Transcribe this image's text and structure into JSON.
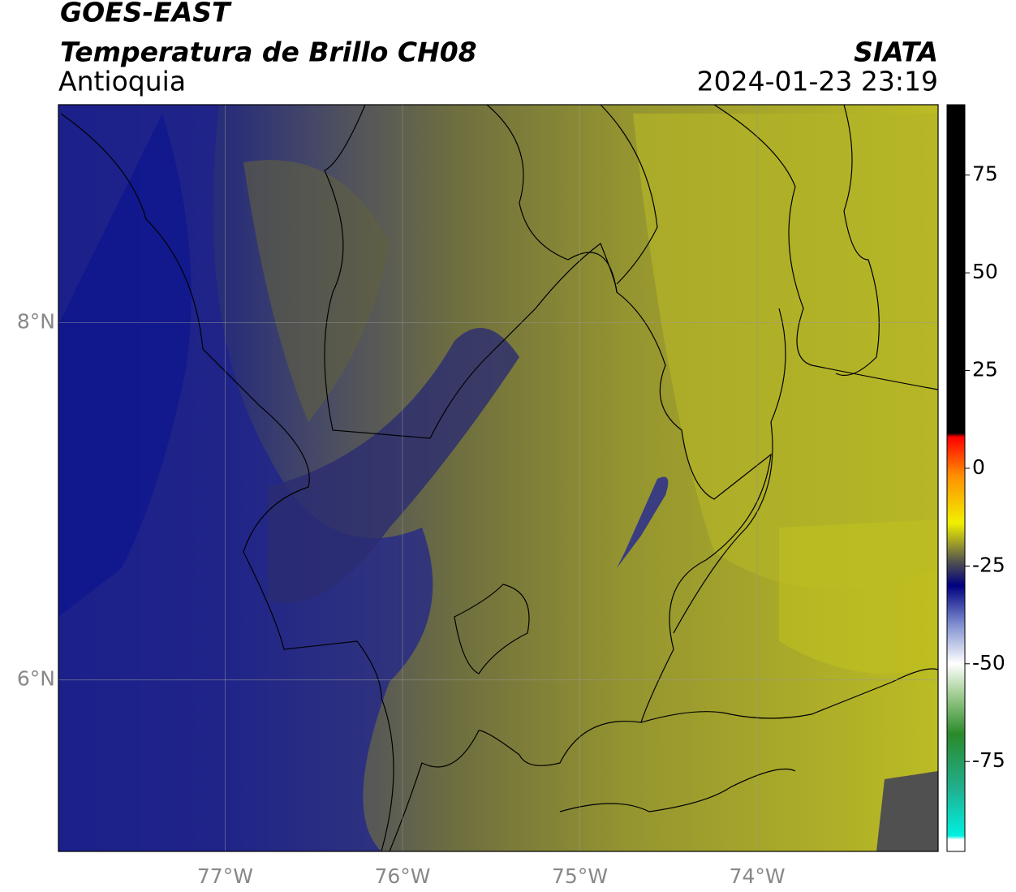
{
  "header": {
    "title": "GOES-EAST",
    "subtitle": "Temperatura de Brillo CH08",
    "region": "Antioquia",
    "source": "SIATA",
    "datetime": "2024-01-23 23:19"
  },
  "map": {
    "xlim": [
      -77.94,
      -72.98
    ],
    "ylim": [
      5.04,
      9.22
    ],
    "xticks": [
      {
        "value": -77,
        "label": "77°W"
      },
      {
        "value": -76,
        "label": "76°W"
      },
      {
        "value": -75,
        "label": "75°W"
      },
      {
        "value": -74,
        "label": "74°W"
      }
    ],
    "yticks": [
      {
        "value": 8,
        "label": "8°N"
      },
      {
        "value": 6,
        "label": "6°N"
      }
    ],
    "grid": true
  },
  "colorbar": {
    "vlim": [
      -98,
      93
    ],
    "ticks": [
      75,
      50,
      25,
      0,
      -25,
      -50,
      -75
    ],
    "stops": [
      {
        "value": -98,
        "color": "#ffffff"
      },
      {
        "value": -95,
        "color": "#ffffff"
      },
      {
        "value": -94,
        "color": "#00f0e0"
      },
      {
        "value": -82,
        "color": "#20b090"
      },
      {
        "value": -68,
        "color": "#2a8a2a"
      },
      {
        "value": -58,
        "color": "#a0cc90"
      },
      {
        "value": -50,
        "color": "#ffffff"
      },
      {
        "value": -40,
        "color": "#8090d0"
      },
      {
        "value": -30,
        "color": "#000080"
      },
      {
        "value": -24,
        "color": "#505050"
      },
      {
        "value": -14,
        "color": "#f0f000"
      },
      {
        "value": -2,
        "color": "#ff9000"
      },
      {
        "value": 8,
        "color": "#ff0000"
      },
      {
        "value": 9,
        "color": "#000000"
      },
      {
        "value": 93,
        "color": "#000000"
      }
    ]
  }
}
